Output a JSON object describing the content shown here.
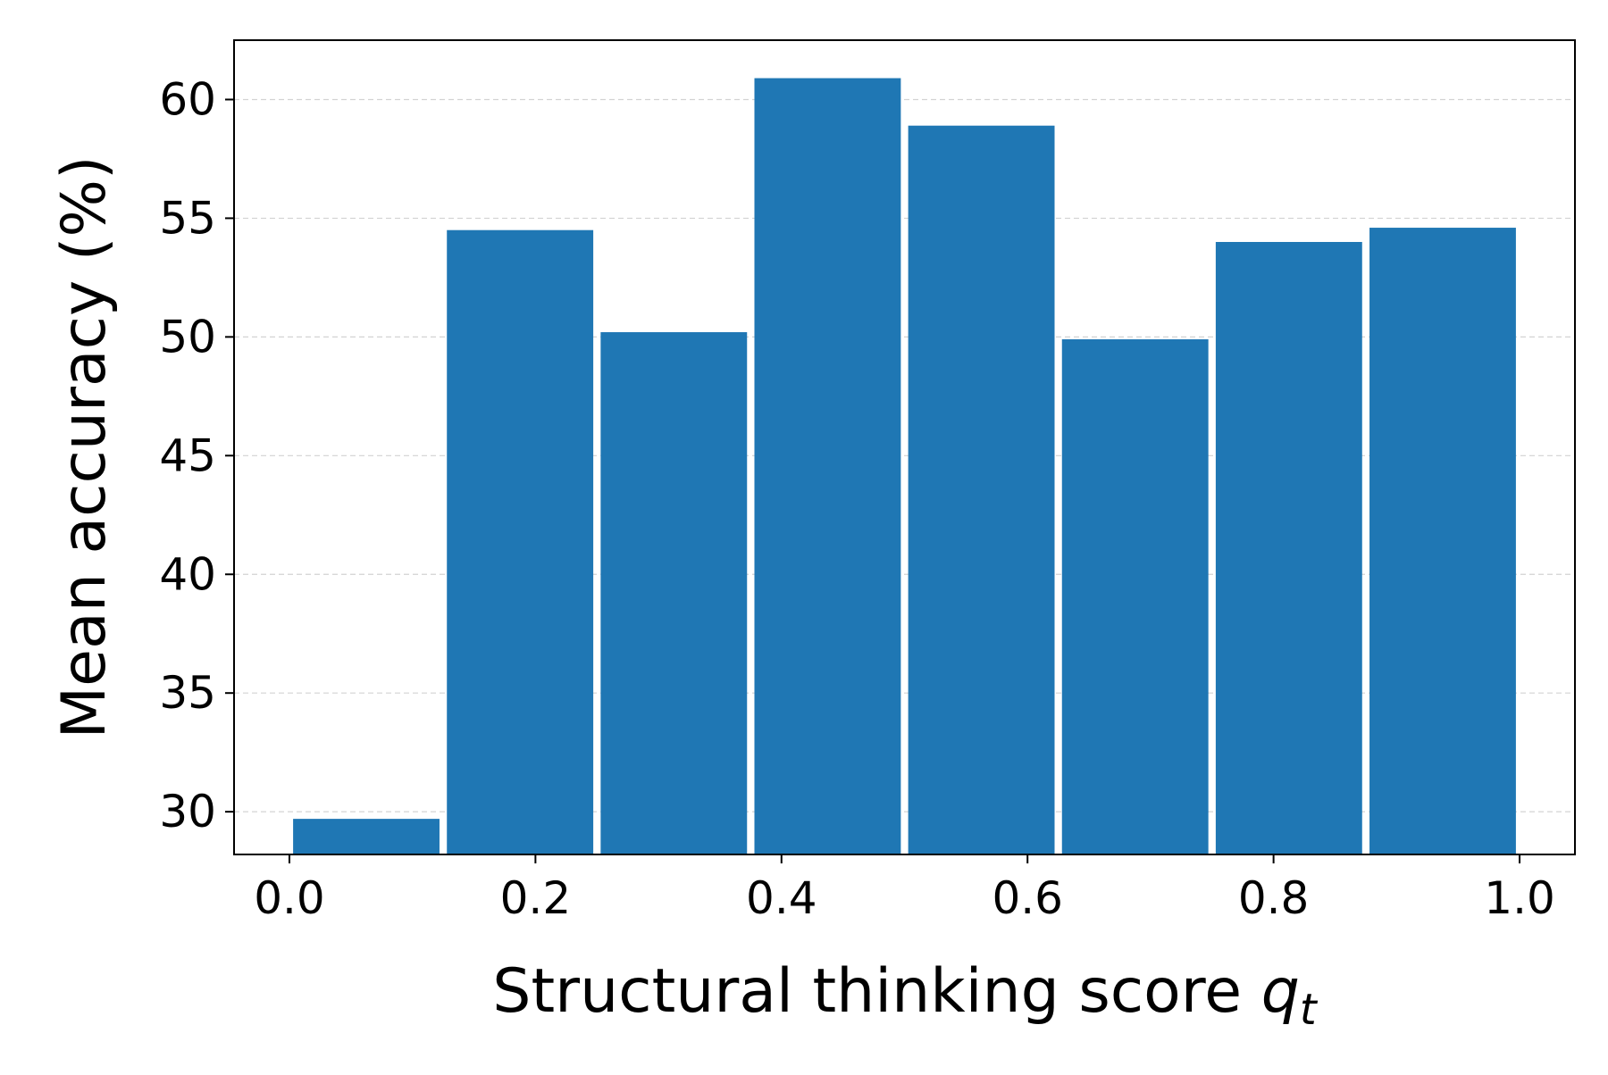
{
  "chart_data": {
    "type": "bar",
    "title": "",
    "xlabel": "Structural thinking score",
    "xlabel_symbol": "q",
    "xlabel_subscript": "t",
    "ylabel": "Mean accuracy (%)",
    "bins": [
      {
        "x_start": 0.0,
        "x_end": 0.125,
        "value": 29.7
      },
      {
        "x_start": 0.125,
        "x_end": 0.25,
        "value": 54.5
      },
      {
        "x_start": 0.25,
        "x_end": 0.375,
        "value": 50.2
      },
      {
        "x_start": 0.375,
        "x_end": 0.5,
        "value": 60.9
      },
      {
        "x_start": 0.5,
        "x_end": 0.625,
        "value": 58.9
      },
      {
        "x_start": 0.625,
        "x_end": 0.75,
        "value": 49.9
      },
      {
        "x_start": 0.75,
        "x_end": 0.875,
        "value": 54.0
      },
      {
        "x_start": 0.875,
        "x_end": 1.0,
        "value": 54.6
      }
    ],
    "xlim": [
      -0.045,
      1.045
    ],
    "ylim": [
      28.2,
      62.5
    ],
    "xticks": [
      "0.0",
      "0.2",
      "0.4",
      "0.6",
      "0.8",
      "1.0"
    ],
    "yticks": [
      "30",
      "35",
      "40",
      "45",
      "50",
      "55",
      "60"
    ],
    "grid": "horizontal dashed",
    "legend": "none",
    "bar_color": "#1f77b4",
    "grid_color": "#d3d3d3"
  }
}
